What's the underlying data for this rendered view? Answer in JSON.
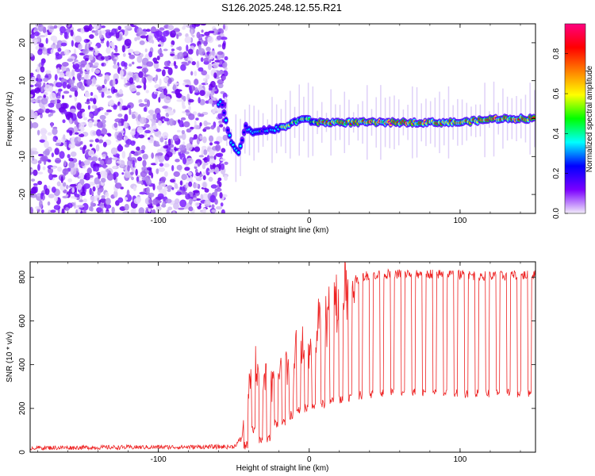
{
  "chart_data": [
    {
      "type": "heatmap",
      "title": "S126.2025.248.12.55.R21",
      "xlabel": "Height of straight line (km)",
      "ylabel": "Frequency (Hz)",
      "xlim": [
        -185,
        150
      ],
      "ylim": [
        -25,
        25
      ],
      "xticks": [
        -100,
        0,
        100
      ],
      "yticks": [
        -20,
        -10,
        0,
        10,
        20
      ],
      "ridge": {
        "x": [
          -58,
          -52,
          -47,
          -42,
          -38,
          -32,
          -25,
          -15,
          -5,
          5,
          25,
          50,
          75,
          100,
          125,
          150
        ],
        "freq": [
          4,
          -6,
          -9,
          -2,
          -4,
          -3,
          -3,
          -2,
          0,
          -1,
          -1,
          -1,
          -1,
          -1,
          0,
          0
        ]
      },
      "colorbar": {
        "label": "Normalized spectral amplitude",
        "range": [
          0,
          0.95
        ],
        "ticks": [
          0.0,
          0.2,
          0.4,
          0.6,
          0.8
        ],
        "colors": [
          "#f2ecfa",
          "#7b00ff",
          "#0000ff",
          "#00ffff",
          "#00ff00",
          "#ffff00",
          "#ff8000",
          "#ff0000",
          "#ff0080"
        ]
      }
    },
    {
      "type": "line",
      "xlabel": "Height of straight line (km)",
      "ylabel": "SNR (10 * v/v)",
      "xlim": [
        -185,
        150
      ],
      "ylim": [
        0,
        870
      ],
      "xticks": [
        -100,
        0,
        100
      ],
      "yticks": [
        0,
        200,
        400,
        600,
        800
      ],
      "series": [
        {
          "name": "SNR",
          "color": "#ee2222",
          "envelope_x": [
            -185,
            -50,
            -45,
            -40,
            -35,
            -30,
            -25,
            -20,
            -15,
            -10,
            -5,
            0,
            5,
            10,
            15,
            20,
            25,
            30,
            40,
            60,
            80,
            100,
            120,
            150
          ],
          "envelope_y": [
            20,
            25,
            60,
            280,
            400,
            330,
            300,
            360,
            400,
            450,
            480,
            520,
            560,
            600,
            650,
            700,
            760,
            790,
            810,
            815,
            815,
            810,
            805,
            810
          ],
          "dropouts": {
            "x": [
              -42,
              -37,
              -32,
              -27,
              -22,
              -17,
              -12,
              -7,
              -2,
              3,
              9,
              15,
              21,
              27,
              34,
              41,
              48,
              55,
              62,
              69,
              76,
              83,
              90,
              97,
              104,
              111,
              118,
              125,
              132,
              139,
              146
            ],
            "y": [
              10,
              80,
              40,
              40,
              110,
              120,
              150,
              170,
              180,
              190,
              200,
              210,
              220,
              230,
              240,
              245,
              250,
              250,
              250,
              250,
              250,
              250,
              250,
              250,
              250,
              250,
              250,
              250,
              250,
              250,
              250
            ]
          }
        }
      ]
    }
  ]
}
